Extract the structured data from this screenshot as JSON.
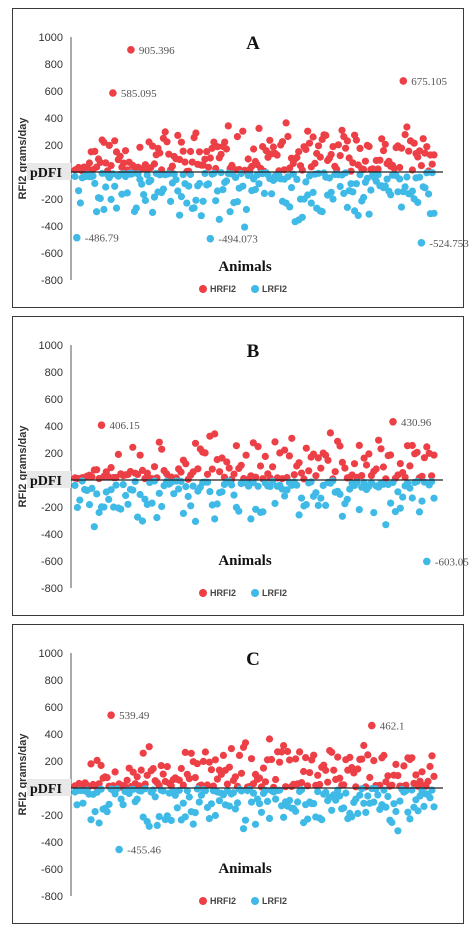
{
  "colors": {
    "hrfi2": "#ec3f46",
    "lrfi2": "#3fb9e5",
    "axis": "#555555",
    "zero_line": "#222222"
  },
  "chart_data": [
    {
      "type": "scatter",
      "title": "A",
      "xlabel": "Animals",
      "ylabel": "RFI2 grams/day",
      "ylim": [
        -800,
        1000
      ],
      "yticks": [
        1000,
        800,
        600,
        400,
        200,
        0,
        -200,
        -400,
        -600,
        -800
      ],
      "zero_label": "pDFI",
      "grid": false,
      "legend": {
        "placement": "bottom-center",
        "entries": [
          "HRFI2",
          "LRFI2"
        ]
      },
      "n_animals": 200,
      "series": [
        {
          "name": "HRFI2",
          "color": "#ec3f46",
          "sign": 1,
          "typical_max": 300,
          "seed": 11
        },
        {
          "name": "LRFI2",
          "color": "#3fb9e5",
          "sign": -1,
          "typical_max": 340,
          "seed": 23
        }
      ],
      "annotations": [
        {
          "series": "HRFI2",
          "x": 31,
          "y": 905.396,
          "label": "905.396"
        },
        {
          "series": "HRFI2",
          "x": 21,
          "y": 585.095,
          "label": "585.095"
        },
        {
          "series": "HRFI2",
          "x": 182,
          "y": 675.105,
          "label": "675.105"
        },
        {
          "series": "LRFI2",
          "x": 1,
          "y": -486.79,
          "label": "-486.79"
        },
        {
          "series": "LRFI2",
          "x": 75,
          "y": -494.073,
          "label": "-494.073"
        },
        {
          "series": "LRFI2",
          "x": 192,
          "y": -524.753,
          "label": "-524.753"
        }
      ]
    },
    {
      "type": "scatter",
      "title": "B",
      "xlabel": "Animals",
      "ylabel": "RFI2 grams/day",
      "ylim": [
        -800,
        1000
      ],
      "yticks": [
        1000,
        800,
        600,
        400,
        200,
        0,
        -200,
        -400,
        -600,
        -800
      ],
      "zero_label": "pDFI",
      "grid": false,
      "legend": {
        "placement": "bottom-center",
        "entries": [
          "HRFI2",
          "LRFI2"
        ]
      },
      "n_animals": 150,
      "series": [
        {
          "name": "HRFI2",
          "color": "#ec3f46",
          "sign": 1,
          "typical_max": 300,
          "seed": 37
        },
        {
          "name": "LRFI2",
          "color": "#3fb9e5",
          "sign": -1,
          "typical_max": 290,
          "seed": 41
        }
      ],
      "annotations": [
        {
          "series": "HRFI2",
          "x": 11,
          "y": 406.15,
          "label": "406.15"
        },
        {
          "series": "HRFI2",
          "x": 132,
          "y": 430.96,
          "label": "430.96"
        },
        {
          "series": "LRFI2",
          "x": 146,
          "y": -603.05,
          "label": "-603.05"
        }
      ]
    },
    {
      "type": "scatter",
      "title": "C",
      "xlabel": "Animals",
      "ylabel": "RFI2 grams/day",
      "ylim": [
        -800,
        1000
      ],
      "yticks": [
        1000,
        800,
        600,
        400,
        200,
        0,
        -200,
        -400,
        -600,
        -800
      ],
      "zero_label": "pDFI",
      "grid": false,
      "legend": {
        "placement": "bottom-center",
        "entries": [
          "HRFI2",
          "LRFI2"
        ]
      },
      "n_animals": 180,
      "series": [
        {
          "name": "HRFI2",
          "color": "#ec3f46",
          "sign": 1,
          "typical_max": 300,
          "seed": 53
        },
        {
          "name": "LRFI2",
          "color": "#3fb9e5",
          "sign": -1,
          "typical_max": 270,
          "seed": 67
        }
      ],
      "annotations": [
        {
          "series": "HRFI2",
          "x": 18,
          "y": 539.49,
          "label": "539.49"
        },
        {
          "series": "HRFI2",
          "x": 148,
          "y": 462.1,
          "label": "462.1"
        },
        {
          "series": "LRFI2",
          "x": 22,
          "y": -455.46,
          "label": "-455.46"
        }
      ]
    }
  ]
}
